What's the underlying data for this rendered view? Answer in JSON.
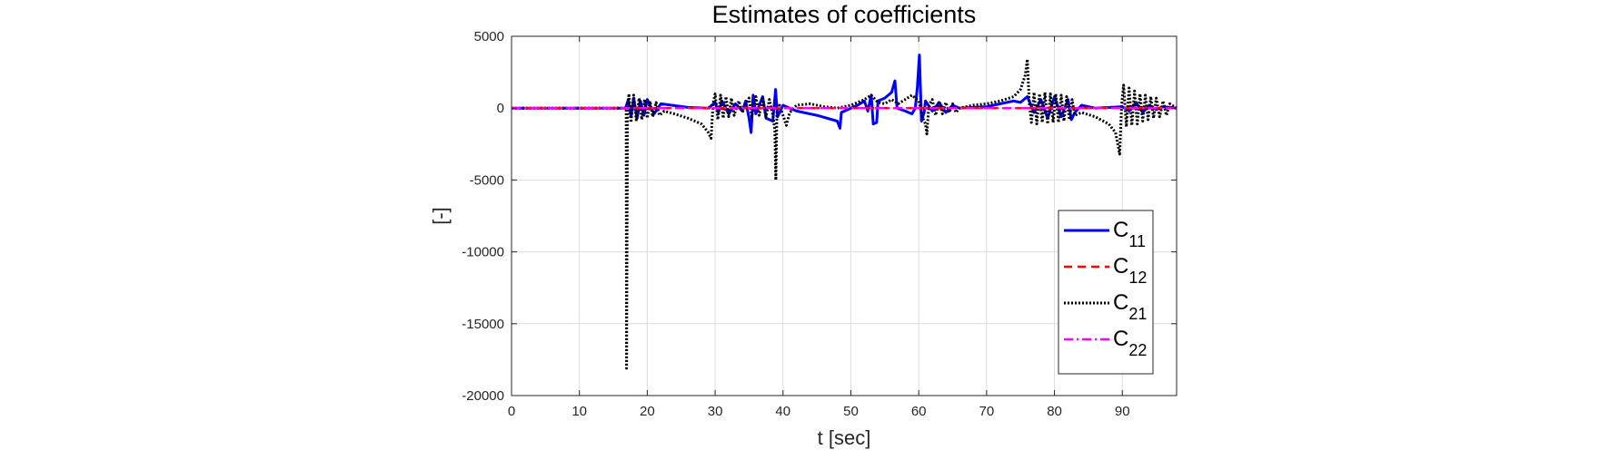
{
  "chart_data": {
    "type": "line",
    "title": "Estimates of coefficients",
    "xlabel": "t [sec]",
    "ylabel": "[-]",
    "xlim": [
      0,
      98
    ],
    "ylim": [
      -20000,
      5000
    ],
    "xticks": [
      0,
      10,
      20,
      30,
      40,
      50,
      60,
      70,
      80,
      90
    ],
    "yticks": [
      5000,
      0,
      -5000,
      -10000,
      -15000,
      -20000
    ],
    "xtick_labels": [
      "0",
      "10",
      "20",
      "30",
      "40",
      "50",
      "60",
      "70",
      "80",
      "90"
    ],
    "ytick_labels": [
      "5000",
      "0",
      "-5000",
      "-10000",
      "-15000",
      "-20000"
    ],
    "grid": true,
    "legend_placement": "right",
    "series": [
      {
        "name_main": "C",
        "name_sub": "11",
        "color": "#0000ff",
        "style": "solid",
        "points": [
          [
            0,
            0
          ],
          [
            16.8,
            0
          ],
          [
            17.2,
            600
          ],
          [
            17.6,
            -600
          ],
          [
            18,
            700
          ],
          [
            18.5,
            -700
          ],
          [
            19,
            500
          ],
          [
            19.5,
            -500
          ],
          [
            20,
            600
          ],
          [
            21,
            -400
          ],
          [
            22,
            300
          ],
          [
            26,
            50
          ],
          [
            29,
            0
          ],
          [
            30,
            400
          ],
          [
            30.5,
            -300
          ],
          [
            31,
            500
          ],
          [
            32,
            -400
          ],
          [
            33,
            300
          ],
          [
            34,
            -200
          ],
          [
            34.5,
            500
          ],
          [
            35,
            -700
          ],
          [
            35.3,
            -1700
          ],
          [
            35.6,
            900
          ],
          [
            36,
            -400
          ],
          [
            37,
            800
          ],
          [
            37.5,
            -700
          ],
          [
            38.5,
            -900
          ],
          [
            38.9,
            1300
          ],
          [
            39.2,
            -600
          ],
          [
            40,
            200
          ],
          [
            41,
            0
          ],
          [
            42,
            -200
          ],
          [
            45,
            -500
          ],
          [
            48,
            -900
          ],
          [
            48.4,
            -1400
          ],
          [
            48.6,
            -300
          ],
          [
            50,
            0
          ],
          [
            51,
            200
          ],
          [
            52,
            500
          ],
          [
            52.5,
            -200
          ],
          [
            53,
            900
          ],
          [
            53.3,
            -1100
          ],
          [
            53.8,
            -1000
          ],
          [
            54,
            500
          ],
          [
            55,
            700
          ],
          [
            56,
            1100
          ],
          [
            56.5,
            1900
          ],
          [
            56.8,
            0
          ],
          [
            58,
            -200
          ],
          [
            59,
            -400
          ],
          [
            59.5,
            0
          ],
          [
            59.8,
            1500
          ],
          [
            60.1,
            3700
          ],
          [
            60.4,
            -900
          ],
          [
            60.8,
            -300
          ],
          [
            61,
            500
          ],
          [
            62,
            -200
          ],
          [
            63,
            400
          ],
          [
            64,
            -300
          ],
          [
            65,
            200
          ],
          [
            66,
            0
          ],
          [
            70,
            100
          ],
          [
            72,
            300
          ],
          [
            74,
            500
          ],
          [
            75,
            400
          ],
          [
            76,
            800
          ],
          [
            77,
            -300
          ],
          [
            78,
            600
          ],
          [
            79,
            -700
          ],
          [
            80,
            800
          ],
          [
            81,
            -600
          ],
          [
            82,
            600
          ],
          [
            82.5,
            -800
          ],
          [
            83,
            -300
          ],
          [
            84,
            200
          ],
          [
            86,
            0
          ],
          [
            90,
            100
          ],
          [
            91,
            -200
          ],
          [
            92,
            400
          ],
          [
            93,
            -300
          ],
          [
            94,
            200
          ],
          [
            95,
            -100
          ],
          [
            96,
            100
          ],
          [
            98,
            0
          ]
        ]
      },
      {
        "name_main": "C",
        "name_sub": "12",
        "color": "#ff0000",
        "style": "dashed",
        "points": [
          [
            0,
            0
          ],
          [
            98,
            0
          ]
        ]
      },
      {
        "name_main": "C",
        "name_sub": "21",
        "color": "#000000",
        "style": "dotted",
        "points": [
          [
            0,
            0
          ],
          [
            16.9,
            0
          ],
          [
            16.95,
            -18100
          ],
          [
            17.1,
            -200
          ],
          [
            17.3,
            1000
          ],
          [
            17.6,
            -1000
          ],
          [
            18,
            900
          ],
          [
            18.4,
            -900
          ],
          [
            18.8,
            700
          ],
          [
            19.2,
            -800
          ],
          [
            19.6,
            600
          ],
          [
            20,
            -700
          ],
          [
            20.4,
            500
          ],
          [
            20.8,
            -600
          ],
          [
            21.3,
            400
          ],
          [
            21.8,
            -500
          ],
          [
            22.5,
            -200
          ],
          [
            24,
            -400
          ],
          [
            26,
            -700
          ],
          [
            28,
            -1100
          ],
          [
            29,
            -1700
          ],
          [
            29.4,
            -2100
          ],
          [
            29.7,
            300
          ],
          [
            30,
            1000
          ],
          [
            30.4,
            -800
          ],
          [
            30.8,
            900
          ],
          [
            31.2,
            -700
          ],
          [
            31.6,
            800
          ],
          [
            32,
            -600
          ],
          [
            32.4,
            700
          ],
          [
            32.8,
            -500
          ],
          [
            33.5,
            500
          ],
          [
            34,
            -300
          ],
          [
            35,
            700
          ],
          [
            35.4,
            -600
          ],
          [
            36,
            800
          ],
          [
            36.5,
            -500
          ],
          [
            37,
            700
          ],
          [
            37.5,
            -600
          ],
          [
            38,
            600
          ],
          [
            38.5,
            -500
          ],
          [
            38.8,
            -1500
          ],
          [
            38.95,
            -5000
          ],
          [
            39.1,
            -300
          ],
          [
            39.5,
            200
          ],
          [
            40,
            -500
          ],
          [
            40.5,
            -1200
          ],
          [
            41,
            -300
          ],
          [
            42,
            200
          ],
          [
            44,
            300
          ],
          [
            46,
            100
          ],
          [
            48,
            0
          ],
          [
            50,
            200
          ],
          [
            52,
            600
          ],
          [
            53,
            900
          ],
          [
            54,
            400
          ],
          [
            55,
            300
          ],
          [
            56,
            600
          ],
          [
            57,
            300
          ],
          [
            58,
            600
          ],
          [
            59,
            900
          ],
          [
            60,
            500
          ],
          [
            60.5,
            -600
          ],
          [
            61,
            -1100
          ],
          [
            61.2,
            -1800
          ],
          [
            61.5,
            200
          ],
          [
            62,
            600
          ],
          [
            62.5,
            -500
          ],
          [
            63,
            500
          ],
          [
            63.5,
            -400
          ],
          [
            64,
            400
          ],
          [
            64.5,
            -300
          ],
          [
            65,
            300
          ],
          [
            65.5,
            -300
          ],
          [
            66,
            0
          ],
          [
            68,
            200
          ],
          [
            70,
            300
          ],
          [
            72,
            500
          ],
          [
            74,
            800
          ],
          [
            75,
            1300
          ],
          [
            75.7,
            2300
          ],
          [
            76,
            3400
          ],
          [
            76.3,
            300
          ],
          [
            76.6,
            -1000
          ],
          [
            77,
            1100
          ],
          [
            77.4,
            -1100
          ],
          [
            77.8,
            1000
          ],
          [
            78.2,
            -1000
          ],
          [
            78.6,
            1100
          ],
          [
            79,
            -1100
          ],
          [
            79.4,
            1000
          ],
          [
            79.8,
            -1000
          ],
          [
            80.2,
            1000
          ],
          [
            80.6,
            -1000
          ],
          [
            81,
            900
          ],
          [
            81.4,
            -900
          ],
          [
            81.8,
            800
          ],
          [
            82.2,
            -800
          ],
          [
            82.6,
            600
          ],
          [
            83,
            -500
          ],
          [
            84,
            -300
          ],
          [
            86,
            -600
          ],
          [
            88,
            -1100
          ],
          [
            89,
            -1700
          ],
          [
            89.6,
            -3200
          ],
          [
            89.9,
            200
          ],
          [
            90.2,
            1600
          ],
          [
            90.6,
            -1300
          ],
          [
            91,
            1400
          ],
          [
            91.4,
            -1200
          ],
          [
            91.8,
            1200
          ],
          [
            92.2,
            -1100
          ],
          [
            92.6,
            1000
          ],
          [
            93,
            -900
          ],
          [
            93.4,
            900
          ],
          [
            93.8,
            -800
          ],
          [
            94.2,
            800
          ],
          [
            94.6,
            -700
          ],
          [
            95,
            700
          ],
          [
            95.5,
            -600
          ],
          [
            96,
            500
          ],
          [
            96.5,
            -500
          ],
          [
            97,
            300
          ],
          [
            98,
            0
          ]
        ]
      },
      {
        "name_main": "C",
        "name_sub": "22",
        "color": "#ff00ff",
        "style": "dashdot",
        "points": [
          [
            0,
            0
          ],
          [
            98,
            0
          ]
        ]
      }
    ]
  }
}
